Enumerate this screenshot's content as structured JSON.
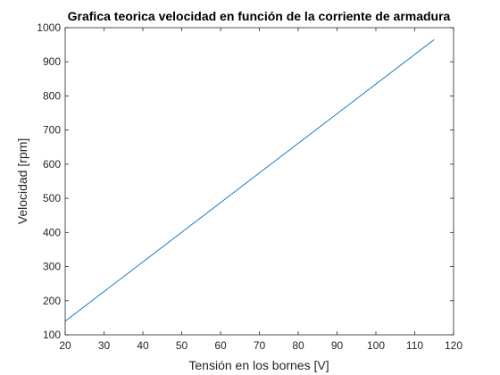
{
  "chart_data": {
    "type": "line",
    "title": "Grafica teorica velocidad en función de la corriente de armadura",
    "xlabel": "Tensión en los bornes [V]",
    "ylabel": "Velocidad [rpm]",
    "xlim": [
      20,
      120
    ],
    "ylim": [
      100,
      1000
    ],
    "xticks": [
      20,
      30,
      40,
      50,
      60,
      70,
      80,
      90,
      100,
      110,
      120
    ],
    "yticks": [
      100,
      200,
      300,
      400,
      500,
      600,
      700,
      800,
      900,
      1000
    ],
    "grid": false,
    "series": [
      {
        "x": [
          20,
          115
        ],
        "y": [
          140,
          965
        ],
        "color": "#0072bd"
      }
    ]
  },
  "colors": {
    "axis": "#262626",
    "background": "#ffffff"
  }
}
